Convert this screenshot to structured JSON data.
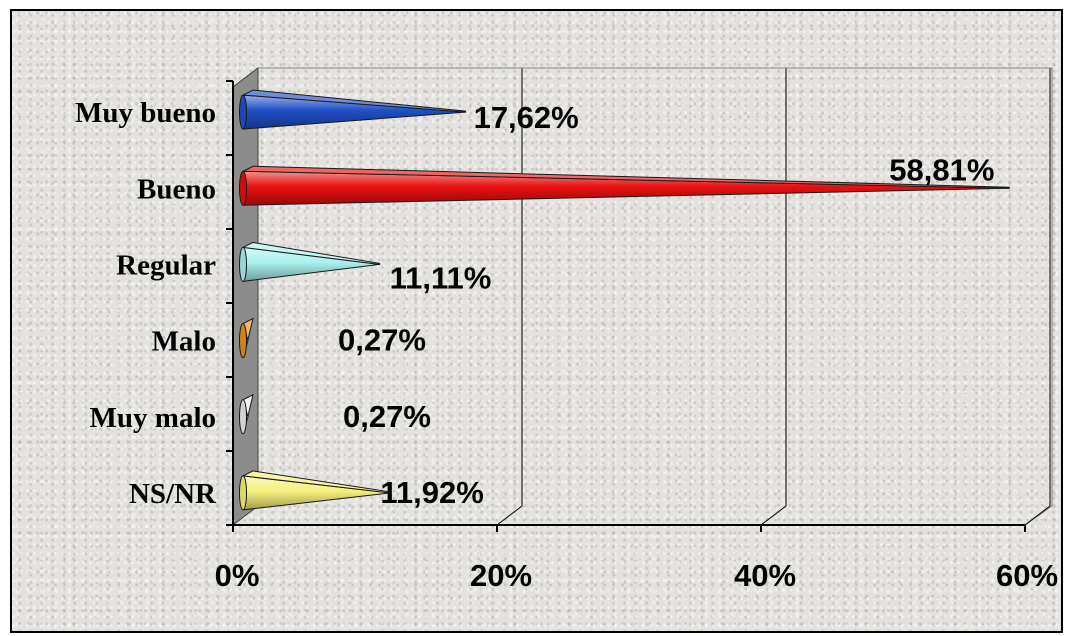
{
  "chart_data": {
    "type": "bar",
    "orientation": "horizontal",
    "style": "3d-cone",
    "categories": [
      "Muy bueno",
      "Bueno",
      "Regular",
      "Malo",
      "Muy malo",
      "NS/NR"
    ],
    "values": [
      17.62,
      58.81,
      11.11,
      0.27,
      0.27,
      11.92
    ],
    "data_labels": [
      "17,62%",
      "58,81%",
      "11,11%",
      "0,27%",
      "0,27%",
      "11,92%"
    ],
    "colors": [
      "#1f4fc8",
      "#e81010",
      "#a8f0ee",
      "#e8901c",
      "#e8e8e8",
      "#f4f07a"
    ],
    "x_ticks": [
      "0%",
      "20%",
      "40%",
      "60%"
    ],
    "xlim": [
      0,
      60
    ],
    "title": "",
    "xlabel": "",
    "ylabel": "",
    "grid": "vertical",
    "legend": "none"
  }
}
